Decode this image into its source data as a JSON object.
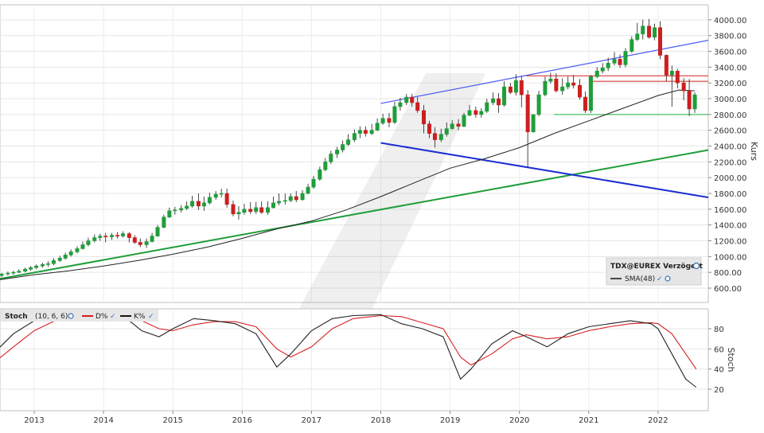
{
  "chart_data": [
    {
      "type": "candlestick",
      "ylabel": "Kurs",
      "ylim": [
        400,
        4050
      ],
      "y_ticks": [
        600,
        800,
        1000,
        1200,
        1400,
        1600,
        1800,
        2000,
        2200,
        2400,
        2600,
        2800,
        3000,
        3200,
        3400,
        3600,
        3800,
        4000
      ],
      "x_ticks": [
        "2013",
        "2014",
        "2015",
        "2016",
        "2017",
        "2018",
        "2019",
        "2020",
        "2021",
        "2022"
      ],
      "legend": {
        "title": "TDX@EUREX Verzögert",
        "sma_label": "SMA(48)",
        "placement": "bottom-right"
      },
      "grid": true,
      "series": [
        {
          "name": "TDX@EUREX Verzögert",
          "x": [
            2012.45,
            2012.53,
            2012.62,
            2012.7,
            2012.78,
            2012.87,
            2012.95,
            2013.03,
            2013.12,
            2013.2,
            2013.28,
            2013.37,
            2013.45,
            2013.53,
            2013.62,
            2013.7,
            2013.78,
            2013.87,
            2013.95,
            2014.03,
            2014.12,
            2014.2,
            2014.28,
            2014.37,
            2014.45,
            2014.53,
            2014.62,
            2014.7,
            2014.78,
            2014.87,
            2014.95,
            2015.03,
            2015.12,
            2015.2,
            2015.28,
            2015.37,
            2015.45,
            2015.53,
            2015.62,
            2015.7,
            2015.78,
            2015.87,
            2015.95,
            2016.03,
            2016.12,
            2016.2,
            2016.28,
            2016.37,
            2016.45,
            2016.53,
            2016.62,
            2016.7,
            2016.78,
            2016.87,
            2016.95,
            2017.03,
            2017.12,
            2017.2,
            2017.28,
            2017.37,
            2017.45,
            2017.53,
            2017.62,
            2017.7,
            2017.78,
            2017.87,
            2017.95,
            2018.03,
            2018.12,
            2018.2,
            2018.28,
            2018.37,
            2018.45,
            2018.53,
            2018.62,
            2018.7,
            2018.78,
            2018.87,
            2018.95,
            2019.03,
            2019.12,
            2019.2,
            2019.28,
            2019.37,
            2019.45,
            2019.53,
            2019.62,
            2019.7,
            2019.78,
            2019.87,
            2019.95,
            2020.03,
            2020.12,
            2020.2,
            2020.28,
            2020.37,
            2020.45,
            2020.53,
            2020.62,
            2020.7,
            2020.78,
            2020.87,
            2020.95,
            2021.03,
            2021.12,
            2021.2,
            2021.28,
            2021.37,
            2021.45,
            2021.53,
            2021.62,
            2021.7,
            2021.78,
            2021.87,
            2021.95,
            2022.03,
            2022.12,
            2022.2,
            2022.28,
            2022.37,
            2022.45,
            2022.53
          ],
          "open": [
            740,
            760,
            780,
            790,
            800,
            815,
            840,
            860,
            880,
            900,
            910,
            950,
            980,
            1020,
            1060,
            1100,
            1150,
            1200,
            1240,
            1260,
            1250,
            1270,
            1260,
            1290,
            1240,
            1180,
            1150,
            1190,
            1260,
            1370,
            1500,
            1580,
            1590,
            1610,
            1640,
            1700,
            1640,
            1680,
            1750,
            1790,
            1800,
            1660,
            1540,
            1560,
            1600,
            1570,
            1620,
            1560,
            1620,
            1680,
            1700,
            1710,
            1760,
            1720,
            1800,
            1880,
            1980,
            2100,
            2200,
            2300,
            2350,
            2420,
            2480,
            2560,
            2600,
            2560,
            2600,
            2690,
            2750,
            2700,
            2900,
            2950,
            3020,
            2950,
            2850,
            2680,
            2560,
            2480,
            2550,
            2620,
            2680,
            2650,
            2790,
            2850,
            2800,
            2840,
            2950,
            3000,
            2920,
            3150,
            3080,
            3230,
            3050,
            2580,
            2800,
            3050,
            3220,
            3250,
            3100,
            3150,
            3200,
            3170,
            3020,
            2850,
            3280,
            3350,
            3390,
            3450,
            3500,
            3430,
            3600,
            3750,
            3820,
            3920,
            3780,
            3900,
            3550,
            3300,
            3350,
            3200,
            3100,
            2870
          ],
          "high": [
            770,
            790,
            810,
            820,
            840,
            860,
            880,
            900,
            920,
            940,
            980,
            1010,
            1050,
            1090,
            1130,
            1190,
            1240,
            1280,
            1290,
            1300,
            1300,
            1310,
            1320,
            1310,
            1270,
            1230,
            1230,
            1300,
            1400,
            1530,
            1620,
            1630,
            1650,
            1700,
            1770,
            1800,
            1760,
            1810,
            1830,
            1860,
            1860,
            1710,
            1640,
            1670,
            1690,
            1690,
            1700,
            1700,
            1760,
            1800,
            1800,
            1800,
            1830,
            1840,
            1920,
            2020,
            2140,
            2250,
            2340,
            2390,
            2470,
            2550,
            2610,
            2650,
            2650,
            2680,
            2750,
            2810,
            2820,
            2960,
            3010,
            3060,
            3060,
            3020,
            2920,
            2720,
            2640,
            2620,
            2700,
            2730,
            2740,
            2820,
            2920,
            2900,
            2880,
            3000,
            3080,
            3070,
            3220,
            3200,
            3310,
            3290,
            3110,
            2800,
            3100,
            3280,
            3330,
            3320,
            3260,
            3280,
            3300,
            3250,
            3090,
            3300,
            3400,
            3450,
            3520,
            3590,
            3560,
            3640,
            3790,
            3960,
            4000,
            4010,
            3950,
            3980,
            3560,
            3420,
            3380,
            3260,
            3250,
            3080
          ],
          "low": [
            720,
            740,
            760,
            770,
            790,
            800,
            820,
            840,
            860,
            870,
            890,
            930,
            960,
            1000,
            1040,
            1090,
            1130,
            1180,
            1200,
            1180,
            1210,
            1230,
            1240,
            1180,
            1160,
            1120,
            1110,
            1180,
            1250,
            1360,
            1490,
            1530,
            1560,
            1590,
            1620,
            1590,
            1580,
            1660,
            1720,
            1750,
            1620,
            1510,
            1470,
            1530,
            1540,
            1540,
            1540,
            1530,
            1610,
            1650,
            1660,
            1690,
            1690,
            1710,
            1790,
            1860,
            1960,
            2080,
            2170,
            2250,
            2320,
            2400,
            2450,
            2500,
            2520,
            2540,
            2590,
            2670,
            2640,
            2680,
            2850,
            2920,
            2900,
            2820,
            2560,
            2500,
            2380,
            2450,
            2520,
            2610,
            2600,
            2640,
            2780,
            2760,
            2760,
            2820,
            2920,
            2820,
            2900,
            3060,
            3040,
            2890,
            2130,
            2570,
            2780,
            3030,
            3190,
            3080,
            3050,
            3120,
            3130,
            2990,
            2820,
            2820,
            3260,
            3320,
            3350,
            3420,
            3390,
            3400,
            3580,
            3730,
            3750,
            3760,
            3740,
            3500,
            3220,
            2900,
            3130,
            2980,
            2780,
            2820
          ],
          "close": [
            760,
            780,
            790,
            800,
            815,
            840,
            860,
            880,
            900,
            910,
            950,
            980,
            1020,
            1060,
            1100,
            1150,
            1200,
            1240,
            1260,
            1250,
            1270,
            1260,
            1290,
            1240,
            1180,
            1150,
            1190,
            1260,
            1370,
            1500,
            1580,
            1590,
            1610,
            1640,
            1700,
            1640,
            1680,
            1750,
            1790,
            1800,
            1660,
            1540,
            1560,
            1600,
            1570,
            1620,
            1560,
            1620,
            1680,
            1700,
            1710,
            1760,
            1720,
            1800,
            1880,
            1980,
            2100,
            2200,
            2300,
            2350,
            2420,
            2480,
            2560,
            2600,
            2560,
            2600,
            2690,
            2750,
            2700,
            2900,
            2950,
            3020,
            2950,
            2850,
            2680,
            2560,
            2480,
            2550,
            2620,
            2680,
            2650,
            2790,
            2850,
            2800,
            2840,
            2950,
            3000,
            2920,
            3150,
            3080,
            3230,
            3050,
            2580,
            2800,
            3050,
            3220,
            3250,
            3100,
            3150,
            3200,
            3170,
            3020,
            2850,
            3280,
            3350,
            3390,
            3450,
            3500,
            3430,
            3600,
            3750,
            3820,
            3920,
            3780,
            3900,
            3550,
            3300,
            3350,
            3200,
            3100,
            2870,
            3050
          ]
        },
        {
          "name": "SMA(48)",
          "x": [
            2012.45,
            2013.0,
            2013.5,
            2014.0,
            2014.5,
            2015.0,
            2015.5,
            2016.0,
            2016.5,
            2017.0,
            2017.5,
            2018.0,
            2018.5,
            2019.0,
            2019.5,
            2020.0,
            2020.5,
            2021.0,
            2021.5,
            2022.0,
            2022.3,
            2022.53
          ],
          "values": [
            700,
            770,
            820,
            880,
            950,
            1030,
            1120,
            1230,
            1350,
            1450,
            1590,
            1760,
            1940,
            2120,
            2240,
            2380,
            2560,
            2720,
            2880,
            3040,
            3110,
            3100
          ]
        },
        {
          "name": "Trendlinie 1",
          "x": [
            2012.45,
            2023.2
          ],
          "values": [
            710,
            2350
          ]
        },
        {
          "name": "Trendlinie 2",
          "x": [
            2018.0,
            2023.2
          ],
          "values": [
            2440,
            1750
          ]
        },
        {
          "name": "Trendlinie 3",
          "x": [
            2018.0,
            2023.2
          ],
          "values": [
            2940,
            3740
          ]
        },
        {
          "name": "Widerstand 1",
          "x": [
            2020.1,
            2023.2
          ],
          "values": [
            3290,
            3290
          ]
        },
        {
          "name": "Widerstand 2",
          "x": [
            2021.0,
            2023.2
          ],
          "values": [
            3220,
            3220
          ]
        },
        {
          "name": "Unterstützung",
          "x": [
            2020.5,
            2023.2
          ],
          "values": [
            2800,
            2800
          ]
        }
      ]
    },
    {
      "type": "line",
      "ylabel": "Stoch",
      "ylim": [
        0,
        100
      ],
      "y_ticks": [
        20,
        40,
        60,
        80
      ],
      "legend": {
        "title": "Stoch",
        "params": "(10, 6, 6)",
        "d_label": "D%",
        "k_label": "K%",
        "placement": "top-left"
      },
      "grid": true,
      "series": [
        {
          "name": "K%",
          "x": [
            2012.45,
            2012.7,
            2013.0,
            2013.3,
            2013.6,
            2014.0,
            2014.3,
            2014.55,
            2014.8,
            2015.0,
            2015.3,
            2015.6,
            2015.9,
            2016.2,
            2016.5,
            2016.7,
            2017.0,
            2017.3,
            2017.6,
            2018.0,
            2018.3,
            2018.6,
            2018.9,
            2019.15,
            2019.3,
            2019.6,
            2019.9,
            2020.1,
            2020.4,
            2020.7,
            2021.0,
            2021.3,
            2021.6,
            2021.9,
            2022.0,
            2022.2,
            2022.4,
            2022.55
          ],
          "values": [
            58,
            75,
            88,
            92,
            95,
            97,
            92,
            78,
            72,
            80,
            90,
            88,
            85,
            75,
            42,
            55,
            78,
            90,
            93,
            94,
            85,
            80,
            72,
            30,
            40,
            65,
            78,
            72,
            62,
            75,
            82,
            85,
            88,
            85,
            80,
            55,
            30,
            22
          ]
        },
        {
          "name": "D%",
          "x": [
            2012.45,
            2012.7,
            2013.0,
            2013.3,
            2013.6,
            2014.0,
            2014.3,
            2014.55,
            2014.8,
            2015.0,
            2015.3,
            2015.6,
            2015.9,
            2016.2,
            2016.5,
            2016.7,
            2017.0,
            2017.3,
            2017.6,
            2018.0,
            2018.3,
            2018.6,
            2018.9,
            2019.15,
            2019.3,
            2019.6,
            2019.9,
            2020.1,
            2020.4,
            2020.7,
            2021.0,
            2021.3,
            2021.6,
            2021.9,
            2022.0,
            2022.2,
            2022.4,
            2022.55
          ],
          "values": [
            48,
            62,
            78,
            88,
            92,
            94,
            93,
            88,
            80,
            78,
            84,
            87,
            87,
            82,
            60,
            52,
            62,
            80,
            90,
            93,
            92,
            86,
            80,
            52,
            44,
            55,
            70,
            74,
            70,
            72,
            78,
            82,
            85,
            86,
            85,
            75,
            55,
            40
          ]
        }
      ]
    }
  ]
}
